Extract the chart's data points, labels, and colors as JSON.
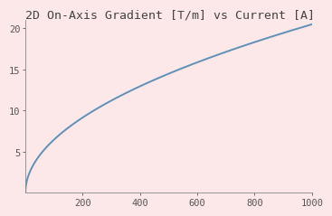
{
  "title": "2D On-Axis Gradient [T/m] vs Current [A]",
  "title_fontsize": 9.5,
  "title_font": "monospace",
  "xlim": [
    0,
    1000
  ],
  "ylim": [
    0,
    21
  ],
  "xticks": [
    200,
    400,
    600,
    800,
    1000
  ],
  "yticks": [
    5,
    10,
    15,
    20
  ],
  "background_color": "#fce8e8",
  "line_color": "#6090b8",
  "line_width": 1.4,
  "curve_scale": 20.5,
  "curve_power": 0.5
}
